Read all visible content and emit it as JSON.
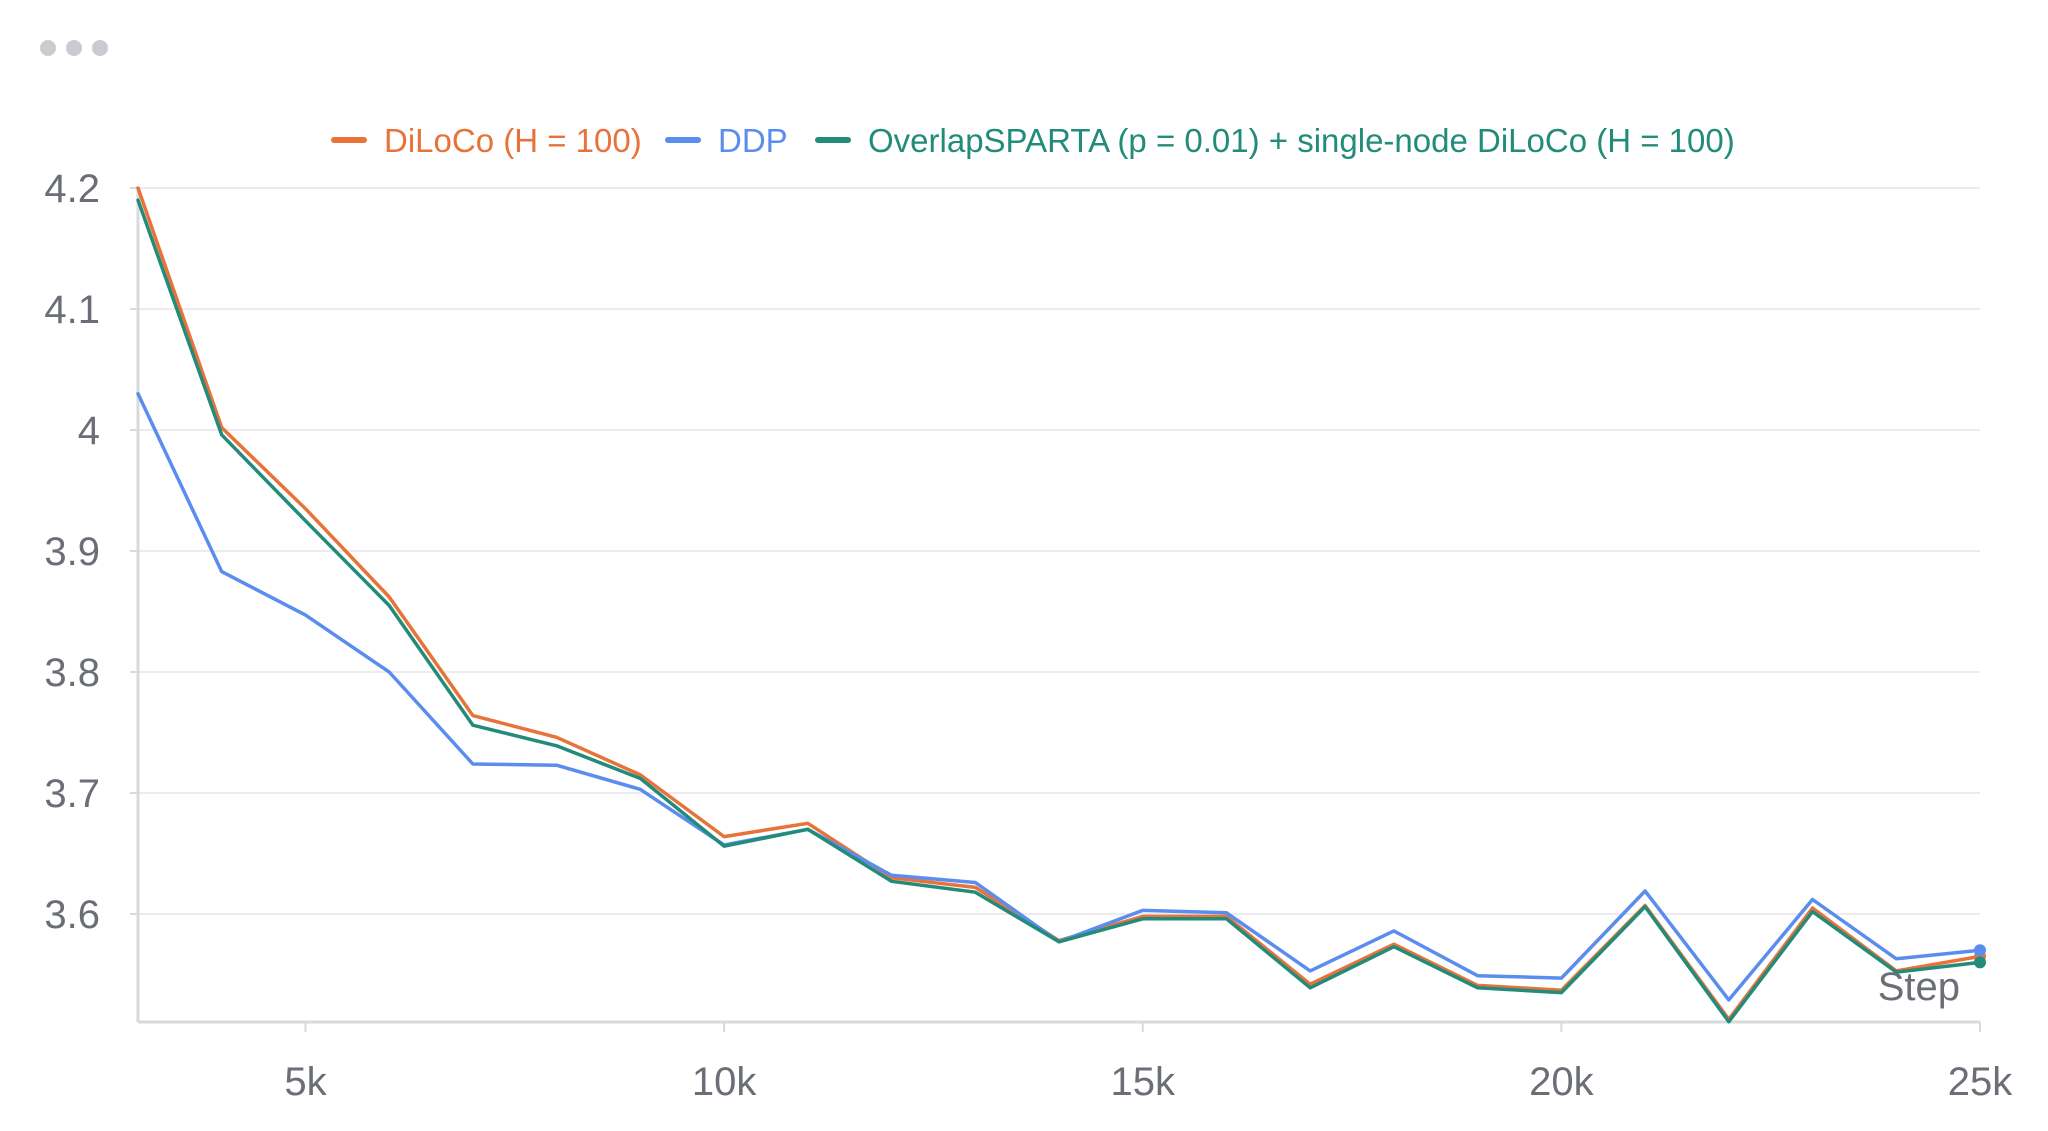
{
  "chart_data": {
    "type": "line",
    "xlabel": "Step",
    "ylabel": "",
    "xlim": [
      3000,
      25000
    ],
    "ylim": [
      3.51,
      4.2
    ],
    "x_ticks": [
      5000,
      10000,
      15000,
      20000,
      25000
    ],
    "x_tick_labels": [
      "5k",
      "10k",
      "15k",
      "20k",
      "25k"
    ],
    "y_ticks": [
      3.6,
      3.7,
      3.8,
      3.9,
      4.0,
      4.1,
      4.2
    ],
    "y_tick_labels": [
      "3.6",
      "3.7",
      "3.8",
      "3.9",
      "4",
      "4.1",
      "4.2"
    ],
    "grid": true,
    "legend_position": "top-center",
    "x": [
      3000,
      4000,
      5000,
      6000,
      7000,
      8000,
      9000,
      10000,
      11000,
      12000,
      13000,
      14000,
      15000,
      16000,
      17000,
      18000,
      19000,
      20000,
      21000,
      22000,
      23000,
      24000,
      25000
    ],
    "series": [
      {
        "name": "DiLoCo (H = 100)",
        "color": "#e8733a",
        "values": [
          4.2,
          4.002,
          3.935,
          3.862,
          3.764,
          3.746,
          3.715,
          3.664,
          3.675,
          3.63,
          3.622,
          3.578,
          3.598,
          3.598,
          3.542,
          3.575,
          3.541,
          3.537,
          3.607,
          3.513,
          3.605,
          3.553,
          3.565
        ]
      },
      {
        "name": "DDP",
        "color": "#5b8def",
        "values": [
          4.03,
          3.883,
          3.847,
          3.8,
          3.724,
          3.723,
          3.703,
          3.657,
          3.67,
          3.632,
          3.626,
          3.577,
          3.603,
          3.601,
          3.553,
          3.586,
          3.549,
          3.547,
          3.619,
          3.529,
          3.612,
          3.563,
          3.57
        ]
      },
      {
        "name": "OverlapSPARTA (p = 0.01) + single-node DiLoCo (H = 100)",
        "color": "#228b7a",
        "values": [
          4.19,
          3.996,
          3.925,
          3.855,
          3.756,
          3.739,
          3.712,
          3.656,
          3.67,
          3.627,
          3.618,
          3.577,
          3.596,
          3.596,
          3.539,
          3.573,
          3.539,
          3.535,
          3.606,
          3.511,
          3.602,
          3.552,
          3.56
        ]
      }
    ]
  }
}
